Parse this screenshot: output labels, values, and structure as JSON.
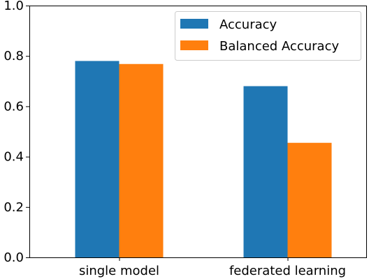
{
  "chart_data": {
    "type": "bar",
    "title": "",
    "xlabel": "",
    "ylabel": "",
    "categories": [
      "single model",
      "federated learning"
    ],
    "series": [
      {
        "name": "Accuracy",
        "values": [
          0.78,
          0.68
        ],
        "color": "#1f77b4"
      },
      {
        "name": "Balanced Accuracy",
        "values": [
          0.768,
          0.455
        ],
        "color": "#ff7f0e"
      }
    ],
    "ylim": [
      0,
      1.0
    ],
    "yticks": [
      "0.0",
      "0.2",
      "0.4",
      "0.6",
      "0.8",
      "1.0"
    ],
    "grid": false,
    "legend_position": "top-right"
  }
}
